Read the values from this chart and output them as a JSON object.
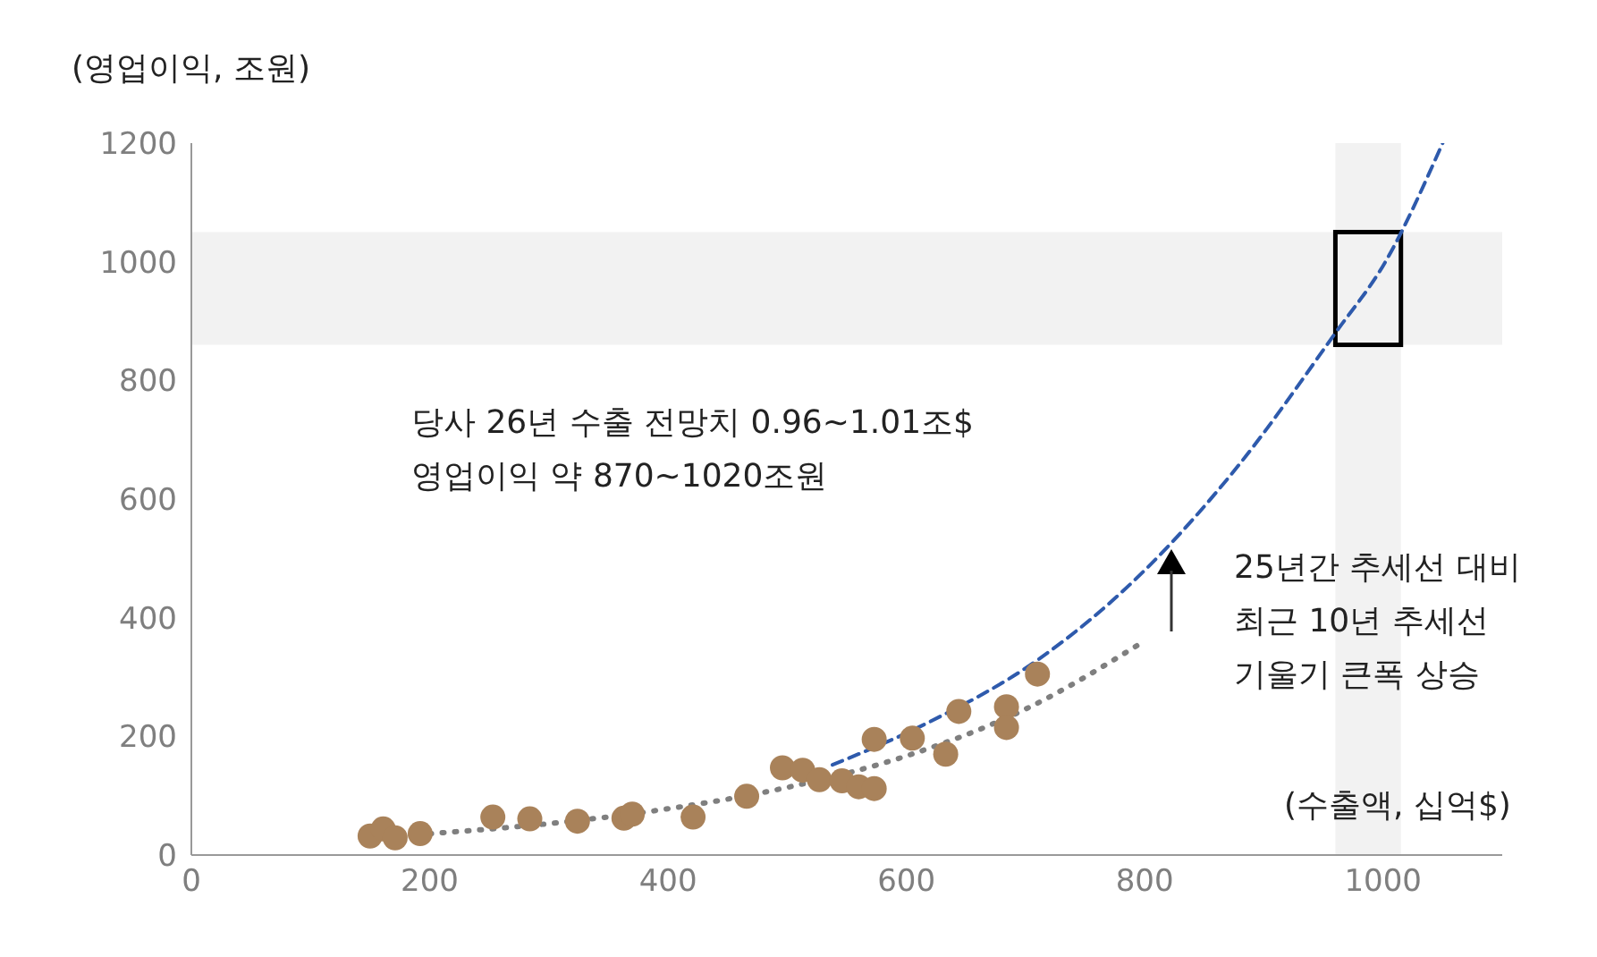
{
  "chart_data": {
    "type": "scatter",
    "xlabel": "(수출액, 십억$)",
    "ylabel": "(영업이익, 조원)",
    "xlim": [
      0,
      1100
    ],
    "xticks": [
      0,
      200,
      400,
      600,
      800,
      1000
    ],
    "ylim": [
      0,
      1200
    ],
    "yticks": [
      0,
      200,
      400,
      600,
      800,
      1000,
      1200
    ],
    "grid": false,
    "legend": false,
    "series": [
      {
        "color": "#a9825a",
        "marker": "circle",
        "x": [
          150,
          161,
          171,
          192,
          253,
          284,
          324,
          363,
          370,
          421,
          466,
          496,
          513,
          527,
          546,
          560,
          573,
          573,
          605,
          633,
          644,
          684,
          684,
          710
        ],
        "values": [
          32,
          44,
          29,
          36,
          64,
          61,
          57,
          62,
          69,
          64,
          99,
          147,
          143,
          127,
          125,
          115,
          112,
          195,
          197,
          170,
          242,
          250,
          215,
          305
        ]
      },
      {
        "type": "line",
        "color": "#7f7f7f",
        "line_style": "dotted",
        "x": [
          200,
          300,
          400,
          500,
          600,
          700,
          800
        ],
        "values": [
          36,
          53,
          78,
          114,
          167,
          246,
          361
        ]
      },
      {
        "type": "line",
        "color": "#2e5aac",
        "line_style": "dashed",
        "x": [
          538,
          620,
          711,
          800,
          880,
          960,
          1002,
          1050
        ],
        "values": [
          152,
          225,
          330,
          480,
          660,
          880,
          1000,
          1200
        ]
      }
    ],
    "bands": [
      {
        "axis": "y",
        "from": 860,
        "to": 1050,
        "color": "#f2f2f2"
      },
      {
        "axis": "x",
        "from": 960,
        "to": 1015,
        "color": "#f2f2f2"
      }
    ],
    "annotations": [
      "당사 26년 수출 전망치 0.96~1.01조$\n영업이익 약 870~1020조원",
      "25년간 추세선 대비\n최근 10년 추세선\n기울기 큰폭 상승"
    ]
  }
}
